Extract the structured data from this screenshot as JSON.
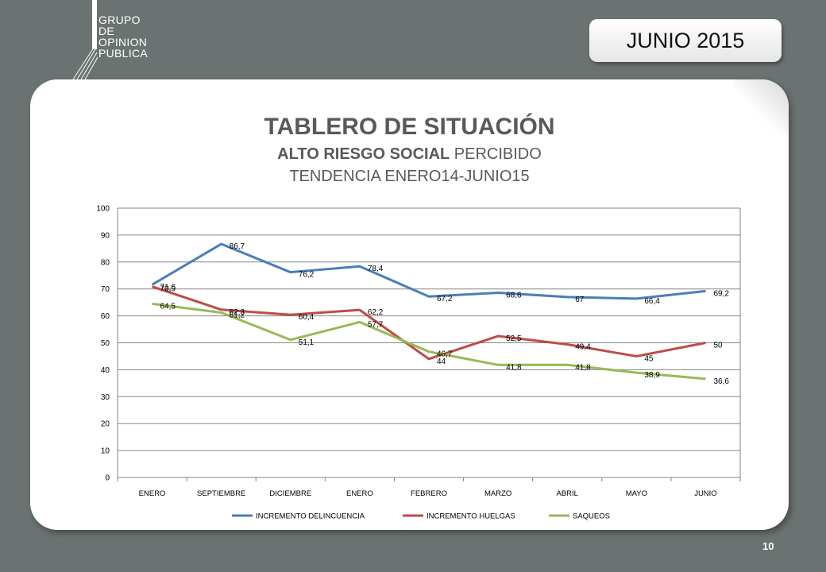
{
  "header": {
    "logo_lines": [
      "GRUPO",
      "DE",
      "OPINION",
      "PUBLICA"
    ],
    "date_badge": "JUNIO 2015"
  },
  "slide": {
    "title": "TABLERO DE SITUACIÓN",
    "subtitle_bold": "ALTO RIESGO SOCIAL",
    "subtitle_rest": " PERCIBIDO",
    "trend": "TENDENCIA ENERO14-JUNIO15"
  },
  "page_number": "10",
  "chart_data": {
    "type": "line",
    "categories": [
      "ENERO",
      "SEPTIEMBRE",
      "DICIEMBRE",
      "ENERO",
      "FEBRERO",
      "MARZO",
      "ABRIL",
      "MAYO",
      "JUNIO"
    ],
    "ylim": [
      0,
      100
    ],
    "yticks": [
      0,
      10,
      20,
      30,
      40,
      50,
      60,
      70,
      80,
      90,
      100
    ],
    "grid": true,
    "legend": "bottom",
    "series": [
      {
        "name": "INCREMENTO DELINCUENCIA",
        "color": "#4a7ebb",
        "values": [
          71.6,
          86.7,
          76.2,
          78.4,
          67.2,
          68.6,
          67,
          66.4,
          69.2
        ],
        "labels": [
          "71,6",
          "86,7",
          "76,2",
          "78,4",
          "67,2",
          "68,6",
          "67",
          "66,4",
          "69,2"
        ]
      },
      {
        "name": "INCREMENTO HUELGAS",
        "color": "#be4b48",
        "values": [
          70.9,
          62.3,
          60.4,
          62.2,
          44,
          52.5,
          49.4,
          45,
          50
        ],
        "labels": [
          "70,9",
          "62,3",
          "60,4",
          "62,2",
          "44",
          "52,5",
          "49,4",
          "45",
          "50"
        ]
      },
      {
        "name": "SAQUEOS",
        "color": "#98b954",
        "values": [
          64.5,
          61.2,
          51.1,
          57.7,
          46.7,
          41.8,
          41.8,
          38.9,
          36.6
        ],
        "labels": [
          "64,5",
          "61,2",
          "51,1",
          "57,7",
          "46,7",
          "41,8",
          "41,8",
          "38,9",
          "36,6"
        ]
      }
    ]
  }
}
